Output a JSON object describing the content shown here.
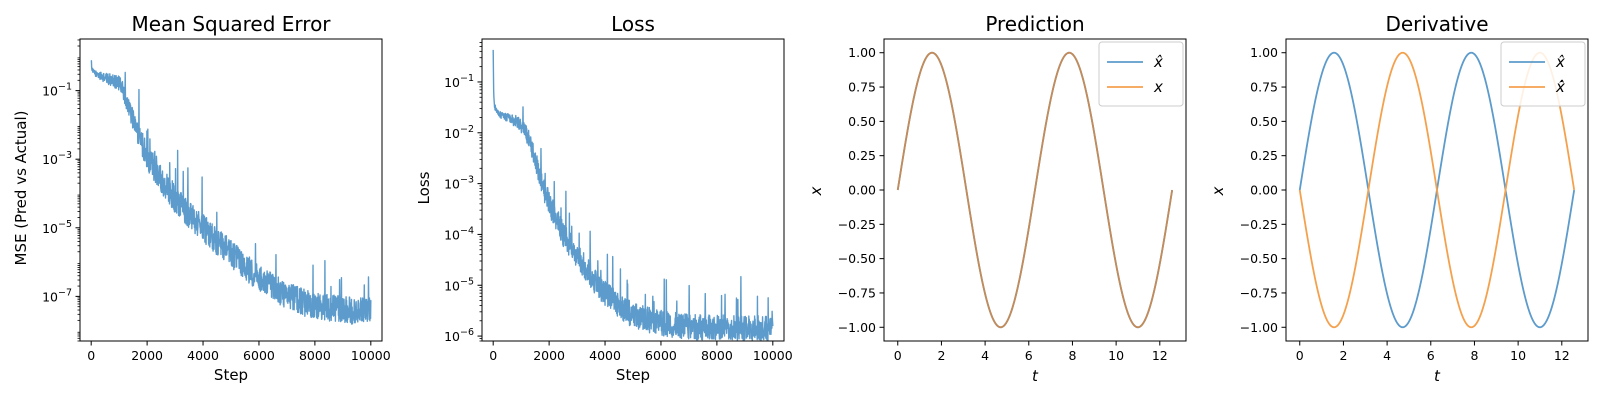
{
  "colors": {
    "blue": "#5c9bcb",
    "orange": "#f4a14e",
    "overlap": "#c98a52"
  },
  "chart_data": [
    {
      "type": "line",
      "title": "Mean Squared Error",
      "xlabel": "Step",
      "ylabel": "MSE (Pred vs Actual)",
      "yscale": "log",
      "xlim": [
        -400,
        10400
      ],
      "ylim": [
        5e-09,
        3.2
      ],
      "xticks": [
        0,
        2000,
        4000,
        6000,
        8000,
        10000
      ],
      "xtick_labels": [
        "0",
        "2000",
        "4000",
        "6000",
        "8000",
        "10000"
      ],
      "yticks": [
        0.1,
        0.001,
        1e-05,
        1e-07
      ],
      "ytick_labels": [
        {
          "base": "10",
          "exp": "−1"
        },
        {
          "base": "10",
          "exp": "−3"
        },
        {
          "base": "10",
          "exp": "−5"
        },
        {
          "base": "10",
          "exp": "−7"
        }
      ],
      "grid": false,
      "series": [
        {
          "color": "#5c9bcb",
          "noise": 0.8,
          "x": [
            0,
            30,
            80,
            200,
            400,
            600,
            800,
            1000,
            1100,
            1200,
            1400,
            1600,
            1800,
            2000,
            2300,
            2600,
            3000,
            3500,
            4000,
            4500,
            5000,
            5500,
            6000,
            6500,
            7000,
            7500,
            8000,
            8500,
            9000,
            9500,
            10000
          ],
          "y": [
            0.8,
            0.4,
            0.35,
            0.3,
            0.25,
            0.22,
            0.2,
            0.16,
            0.12,
            0.07,
            0.025,
            0.008,
            0.003,
            0.0012,
            0.0005,
            0.0002,
            7e-05,
            2.5e-05,
            1e-05,
            4e-06,
            1.8e-06,
            7e-07,
            3.5e-07,
            1.8e-07,
            1.1e-07,
            7e-08,
            5e-08,
            4.5e-08,
            4e-08,
            3.8e-08,
            3.7e-08
          ]
        }
      ]
    },
    {
      "type": "line",
      "title": "Loss",
      "xlabel": "Step",
      "ylabel": "Loss",
      "yscale": "log",
      "xlim": [
        -400,
        10400
      ],
      "ylim": [
        8e-07,
        0.7
      ],
      "xticks": [
        0,
        2000,
        4000,
        6000,
        8000,
        10000
      ],
      "xtick_labels": [
        "0",
        "2000",
        "4000",
        "6000",
        "8000",
        "10000"
      ],
      "yticks": [
        0.1,
        0.01,
        0.001,
        0.0001,
        1e-05,
        1e-06
      ],
      "ytick_labels": [
        {
          "base": "10",
          "exp": "−1"
        },
        {
          "base": "10",
          "exp": "−2"
        },
        {
          "base": "10",
          "exp": "−3"
        },
        {
          "base": "10",
          "exp": "−4"
        },
        {
          "base": "10",
          "exp": "−5"
        },
        {
          "base": "10",
          "exp": "−6"
        }
      ],
      "grid": false,
      "series": [
        {
          "color": "#5c9bcb",
          "noise": 0.5,
          "x": [
            0,
            20,
            60,
            150,
            300,
            500,
            700,
            900,
            1100,
            1300,
            1500,
            1800,
            2100,
            2500,
            3000,
            3500,
            4000,
            4500,
            5000,
            6000,
            7000,
            8000,
            9000,
            10000
          ],
          "y": [
            0.4,
            0.05,
            0.03,
            0.025,
            0.022,
            0.02,
            0.018,
            0.016,
            0.012,
            0.007,
            0.003,
            0.0008,
            0.0003,
            0.0001,
            4e-05,
            1.5e-05,
            7e-06,
            4e-06,
            2.5e-06,
            1.8e-06,
            1.5e-06,
            1.5e-06,
            1.4e-06,
            1.4e-06
          ]
        }
      ]
    },
    {
      "type": "line",
      "title": "Prediction",
      "xlabel": "t",
      "ylabel": "x",
      "xlim": [
        -0.63,
        13.2
      ],
      "ylim": [
        -1.1,
        1.1
      ],
      "xticks": [
        0,
        2,
        4,
        6,
        8,
        10,
        12
      ],
      "xtick_labels": [
        "0",
        "2",
        "4",
        "6",
        "8",
        "10",
        "12"
      ],
      "yticks": [
        1,
        0.75,
        0.5,
        0.25,
        0,
        -0.25,
        -0.5,
        -0.75,
        -1
      ],
      "ytick_labels": [
        "1.00",
        "0.75",
        "0.50",
        "0.25",
        "0.00",
        "−0.25",
        "−0.50",
        "−0.75",
        "−1.00"
      ],
      "grid": false,
      "legend_position": "top-right",
      "series": [
        {
          "name": "x̂",
          "color": "#5c9bcb",
          "x": [
            0,
            0.5,
            1,
            1.5,
            2,
            2.5,
            3,
            3.5,
            4,
            4.5,
            5,
            5.5,
            6,
            6.5,
            7,
            7.5,
            8,
            8.5,
            9,
            9.5,
            10,
            10.5,
            11,
            11.5,
            12,
            12.566
          ],
          "y": [
            0,
            0.479,
            0.841,
            0.997,
            0.909,
            0.598,
            0.141,
            -0.351,
            -0.757,
            -0.978,
            -0.959,
            -0.706,
            -0.279,
            0.215,
            0.657,
            0.938,
            0.989,
            0.798,
            0.412,
            -0.075,
            -0.544,
            -0.88,
            -1.0,
            -0.875,
            -0.537,
            0
          ]
        },
        {
          "name": "x",
          "color": "#f4a14e",
          "x": [
            0,
            0.5,
            1,
            1.5,
            2,
            2.5,
            3,
            3.5,
            4,
            4.5,
            5,
            5.5,
            6,
            6.5,
            7,
            7.5,
            8,
            8.5,
            9,
            9.5,
            10,
            10.5,
            11,
            11.5,
            12,
            12.566
          ],
          "y": [
            0,
            0.479,
            0.841,
            0.997,
            0.909,
            0.598,
            0.141,
            -0.351,
            -0.757,
            -0.978,
            -0.959,
            -0.706,
            -0.279,
            0.215,
            0.657,
            0.938,
            0.989,
            0.798,
            0.412,
            -0.075,
            -0.544,
            -0.88,
            -1.0,
            -0.875,
            -0.537,
            0
          ]
        }
      ]
    },
    {
      "type": "line",
      "title": "Derivative",
      "xlabel": "t",
      "ylabel": "x",
      "xlim": [
        -0.63,
        13.2
      ],
      "ylim": [
        -1.1,
        1.1
      ],
      "xticks": [
        0,
        2,
        4,
        6,
        8,
        10,
        12
      ],
      "xtick_labels": [
        "0",
        "2",
        "4",
        "6",
        "8",
        "10",
        "12"
      ],
      "yticks": [
        1,
        0.75,
        0.5,
        0.25,
        0,
        -0.25,
        -0.5,
        -0.75,
        -1
      ],
      "ytick_labels": [
        "1.00",
        "0.75",
        "0.50",
        "0.25",
        "0.00",
        "−0.25",
        "−0.50",
        "−0.75",
        "−1.00"
      ],
      "grid": false,
      "legend_position": "top-right",
      "series": [
        {
          "name": "x̂",
          "color": "#5c9bcb",
          "x": [
            0,
            0.5,
            1,
            1.5,
            2,
            2.5,
            3,
            3.5,
            4,
            4.5,
            5,
            5.5,
            6,
            6.5,
            7,
            7.5,
            8,
            8.5,
            9,
            9.5,
            10,
            10.5,
            11,
            11.5,
            12,
            12.566
          ],
          "y": [
            0,
            0.479,
            0.841,
            0.997,
            0.909,
            0.598,
            0.141,
            -0.351,
            -0.757,
            -0.978,
            -0.959,
            -0.706,
            -0.279,
            0.215,
            0.657,
            0.938,
            0.989,
            0.798,
            0.412,
            -0.075,
            -0.544,
            -0.88,
            -1.0,
            -0.875,
            -0.537,
            0
          ]
        },
        {
          "name": "x̂̇",
          "color": "#f4a14e",
          "x": [
            0,
            0.5,
            1,
            1.5,
            2,
            2.5,
            3,
            3.5,
            4,
            4.5,
            5,
            5.5,
            6,
            6.5,
            7,
            7.5,
            8,
            8.5,
            9,
            9.5,
            10,
            10.5,
            11,
            11.5,
            12,
            12.566
          ],
          "y": [
            0,
            -0.479,
            -0.841,
            -0.997,
            -0.909,
            -0.598,
            -0.141,
            0.351,
            0.757,
            0.978,
            0.959,
            0.706,
            0.279,
            -0.215,
            -0.657,
            -0.938,
            -0.989,
            -0.798,
            -0.412,
            0.075,
            0.544,
            0.88,
            1.0,
            0.875,
            0.537,
            0
          ]
        }
      ]
    }
  ]
}
